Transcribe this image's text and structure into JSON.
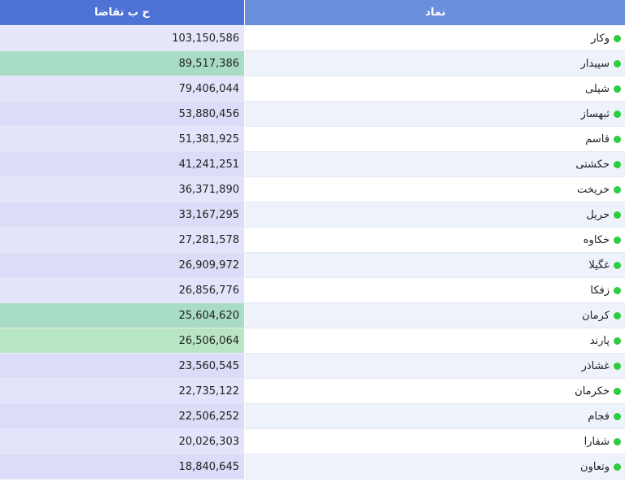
{
  "header": {
    "symbol_label": "نماد",
    "demand_label": "ح ب تقاضا"
  },
  "colors": {
    "dot": "#2ecc40"
  },
  "rows": [
    {
      "symbol": "وکار",
      "demand": "103,150,586",
      "bg": "#e6e7fb"
    },
    {
      "symbol": "سپیدار",
      "demand": "89,517,386",
      "bg": "#a9dcc5"
    },
    {
      "symbol": "شپلی",
      "demand": "79,406,044",
      "bg": "#e3e4fb"
    },
    {
      "symbol": "ثبهساز",
      "demand": "53,880,456",
      "bg": "#dbdcf7"
    },
    {
      "symbol": "قاسم",
      "demand": "51,381,925",
      "bg": "#e3e4fb"
    },
    {
      "symbol": "حکشتی",
      "demand": "41,241,251",
      "bg": "#dbdcf7"
    },
    {
      "symbol": "خریخت",
      "demand": "36,371,890",
      "bg": "#e3e4fb"
    },
    {
      "symbol": "حریل",
      "demand": "33,167,295",
      "bg": "#dbdcf7"
    },
    {
      "symbol": "خکاوه",
      "demand": "27,281,578",
      "bg": "#e3e4fb"
    },
    {
      "symbol": "غگیلا",
      "demand": "26,909,972",
      "bg": "#dbdcf7"
    },
    {
      "symbol": "زفکا",
      "demand": "26,856,776",
      "bg": "#e3e4fb"
    },
    {
      "symbol": "کرمان",
      "demand": "25,604,620",
      "bg": "#a9dcc5"
    },
    {
      "symbol": "پارند",
      "demand": "26,506,064",
      "bg": "#b8e6c4"
    },
    {
      "symbol": "غشاذر",
      "demand": "23,560,545",
      "bg": "#dbdcf7"
    },
    {
      "symbol": "خکرمان",
      "demand": "22,735,122",
      "bg": "#e3e4fb"
    },
    {
      "symbol": "فجام",
      "demand": "22,506,252",
      "bg": "#dbdcf7"
    },
    {
      "symbol": "شفارا",
      "demand": "20,026,303",
      "bg": "#e3e4fb"
    },
    {
      "symbol": "وتعاون",
      "demand": "18,840,645",
      "bg": "#dbdcf7"
    }
  ]
}
